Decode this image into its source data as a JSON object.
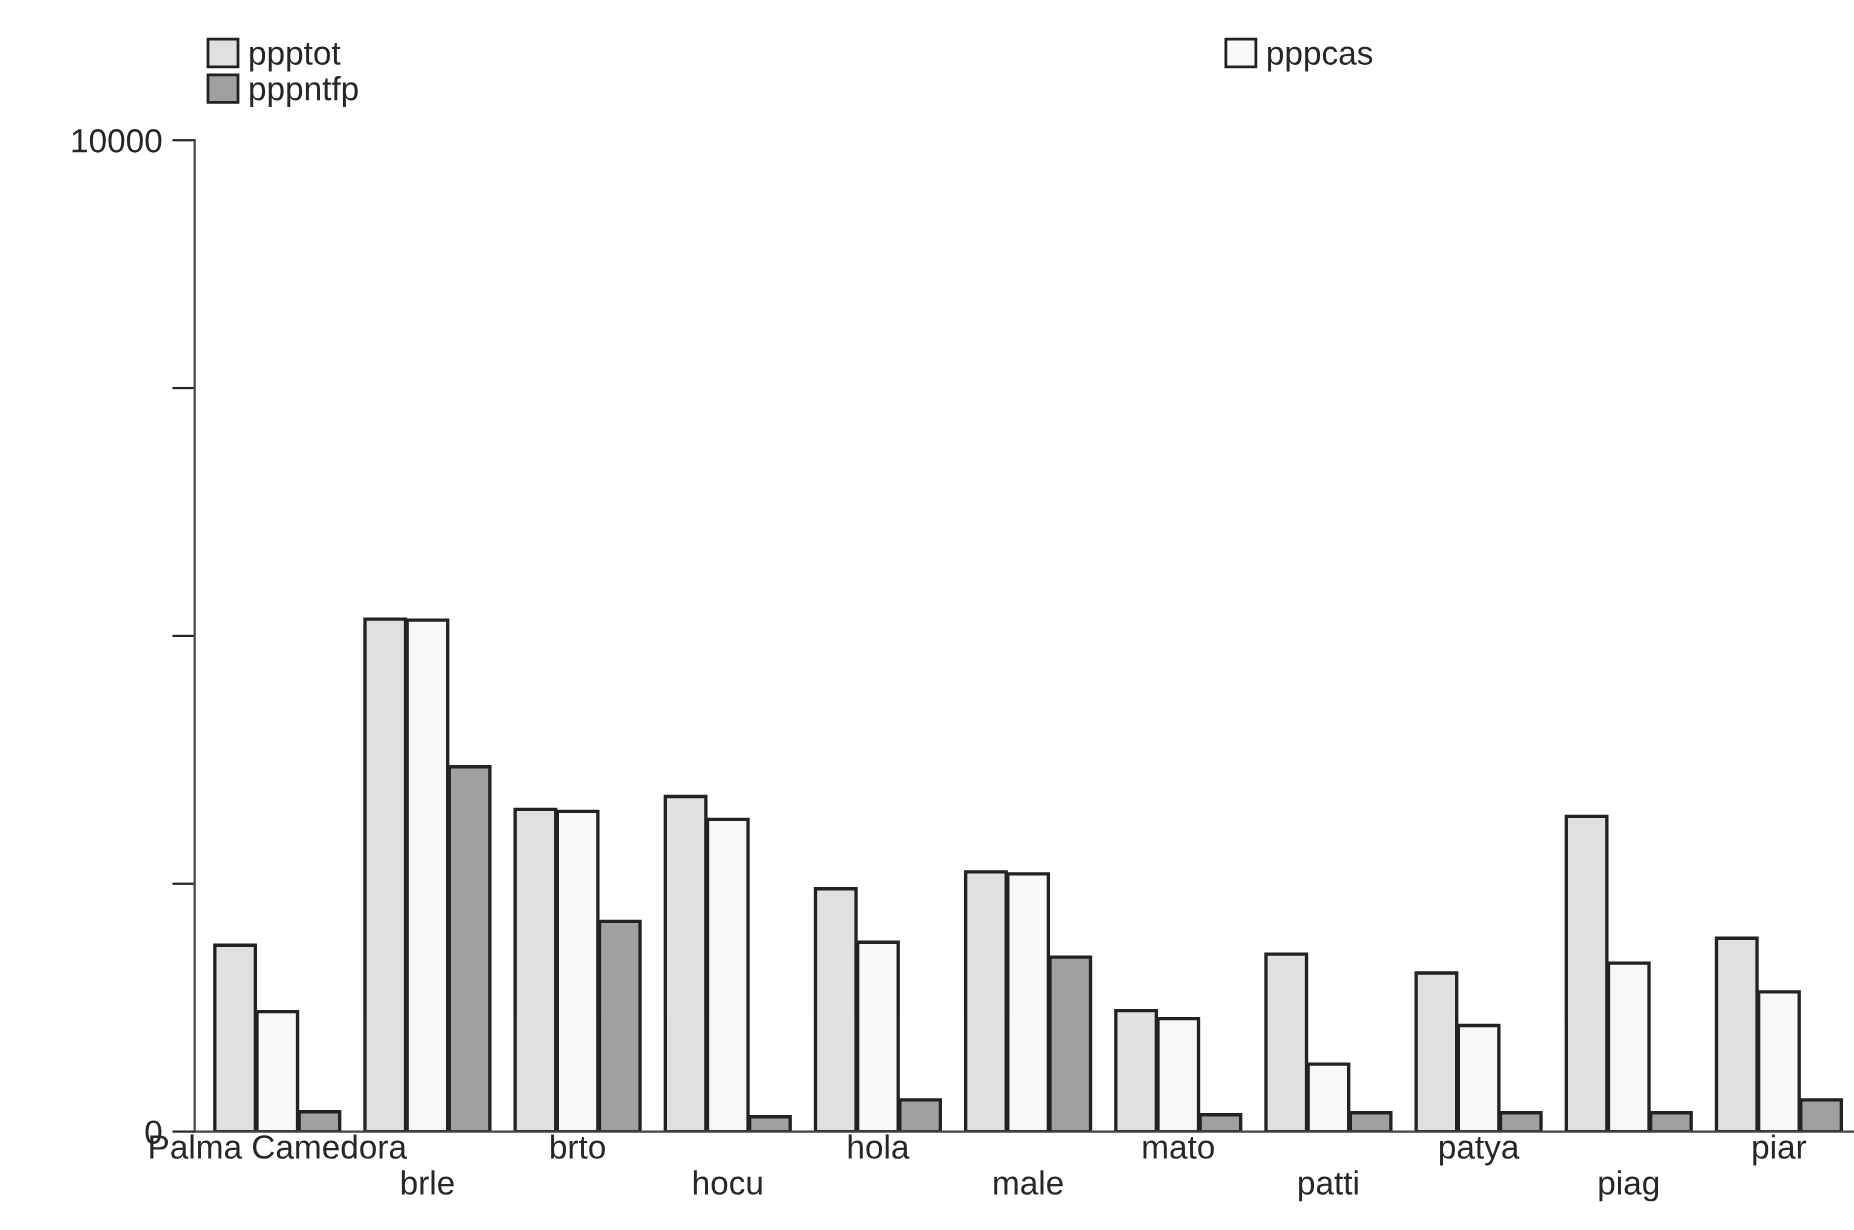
{
  "chart_data": {
    "type": "bar",
    "categories": [
      "Palma Camedora",
      "brle",
      "brto",
      "hocu",
      "hola",
      "male",
      "mato",
      "patti",
      "patya",
      "piag",
      "piar"
    ],
    "series": [
      {
        "name": "ppptot",
        "color": "#e0e0e0",
        "values": [
          1880,
          5170,
          3250,
          3380,
          2450,
          2620,
          1220,
          1790,
          1600,
          3180,
          1950
        ]
      },
      {
        "name": "pppcas",
        "color": "#f8f8f8",
        "values": [
          1210,
          5160,
          3230,
          3150,
          1910,
          2600,
          1140,
          680,
          1070,
          1700,
          1410
        ]
      },
      {
        "name": "pppntfp",
        "color": "#a0a0a0",
        "values": [
          200,
          3680,
          2120,
          150,
          320,
          1760,
          170,
          190,
          190,
          190,
          320
        ]
      }
    ],
    "ylim": [
      0,
      10000
    ],
    "yticks": [
      0,
      {
        "value": 2500,
        "label": null
      },
      {
        "value": 5000,
        "label": null
      },
      {
        "value": 7500,
        "label": null
      },
      10000
    ],
    "grid": false,
    "legend": "top"
  }
}
